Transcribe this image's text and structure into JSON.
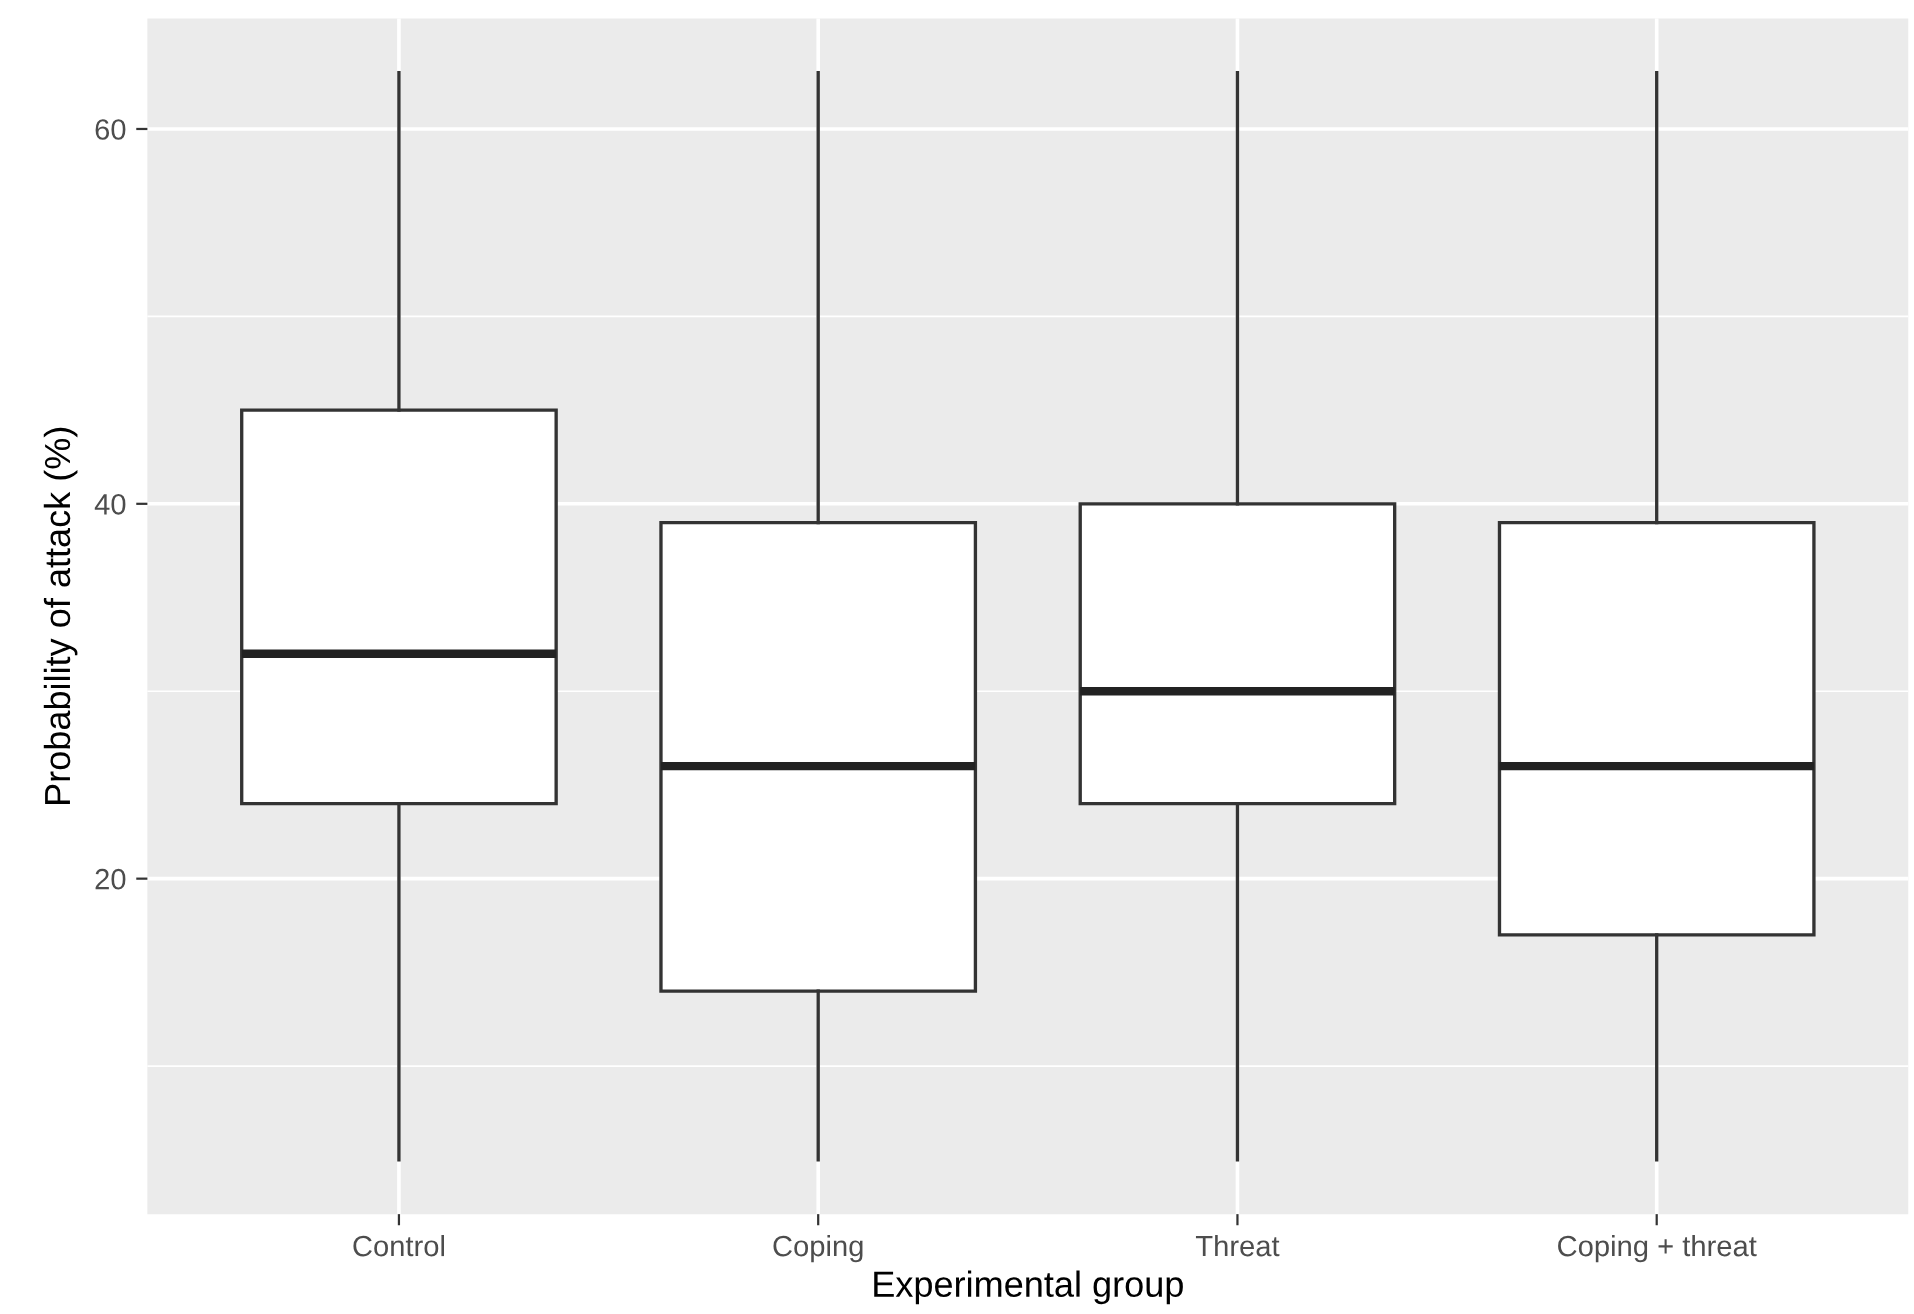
{
  "chart_data": {
    "type": "box",
    "xlabel": "Experimental group",
    "ylabel": "Probability of attack (%)",
    "categories": [
      "Control",
      "Coping",
      "Threat",
      "Coping + threat"
    ],
    "boxes": [
      {
        "low": 5,
        "q1": 24,
        "median": 32,
        "q3": 45,
        "high": 63
      },
      {
        "low": 5,
        "q1": 14,
        "median": 26,
        "q3": 39,
        "high": 63
      },
      {
        "low": 5,
        "q1": 24,
        "median": 30,
        "q3": 40,
        "high": 63
      },
      {
        "low": 5,
        "q1": 17,
        "median": 26,
        "q3": 39,
        "high": 63
      }
    ],
    "color": "#ffffff",
    "ylim": [
      2.1,
      65.9
    ],
    "yticks": [
      {
        "value": 10,
        "label": null
      },
      20,
      {
        "value": 30,
        "label": null
      },
      40,
      {
        "value": 50,
        "label": null
      },
      60
    ],
    "grid": true
  }
}
